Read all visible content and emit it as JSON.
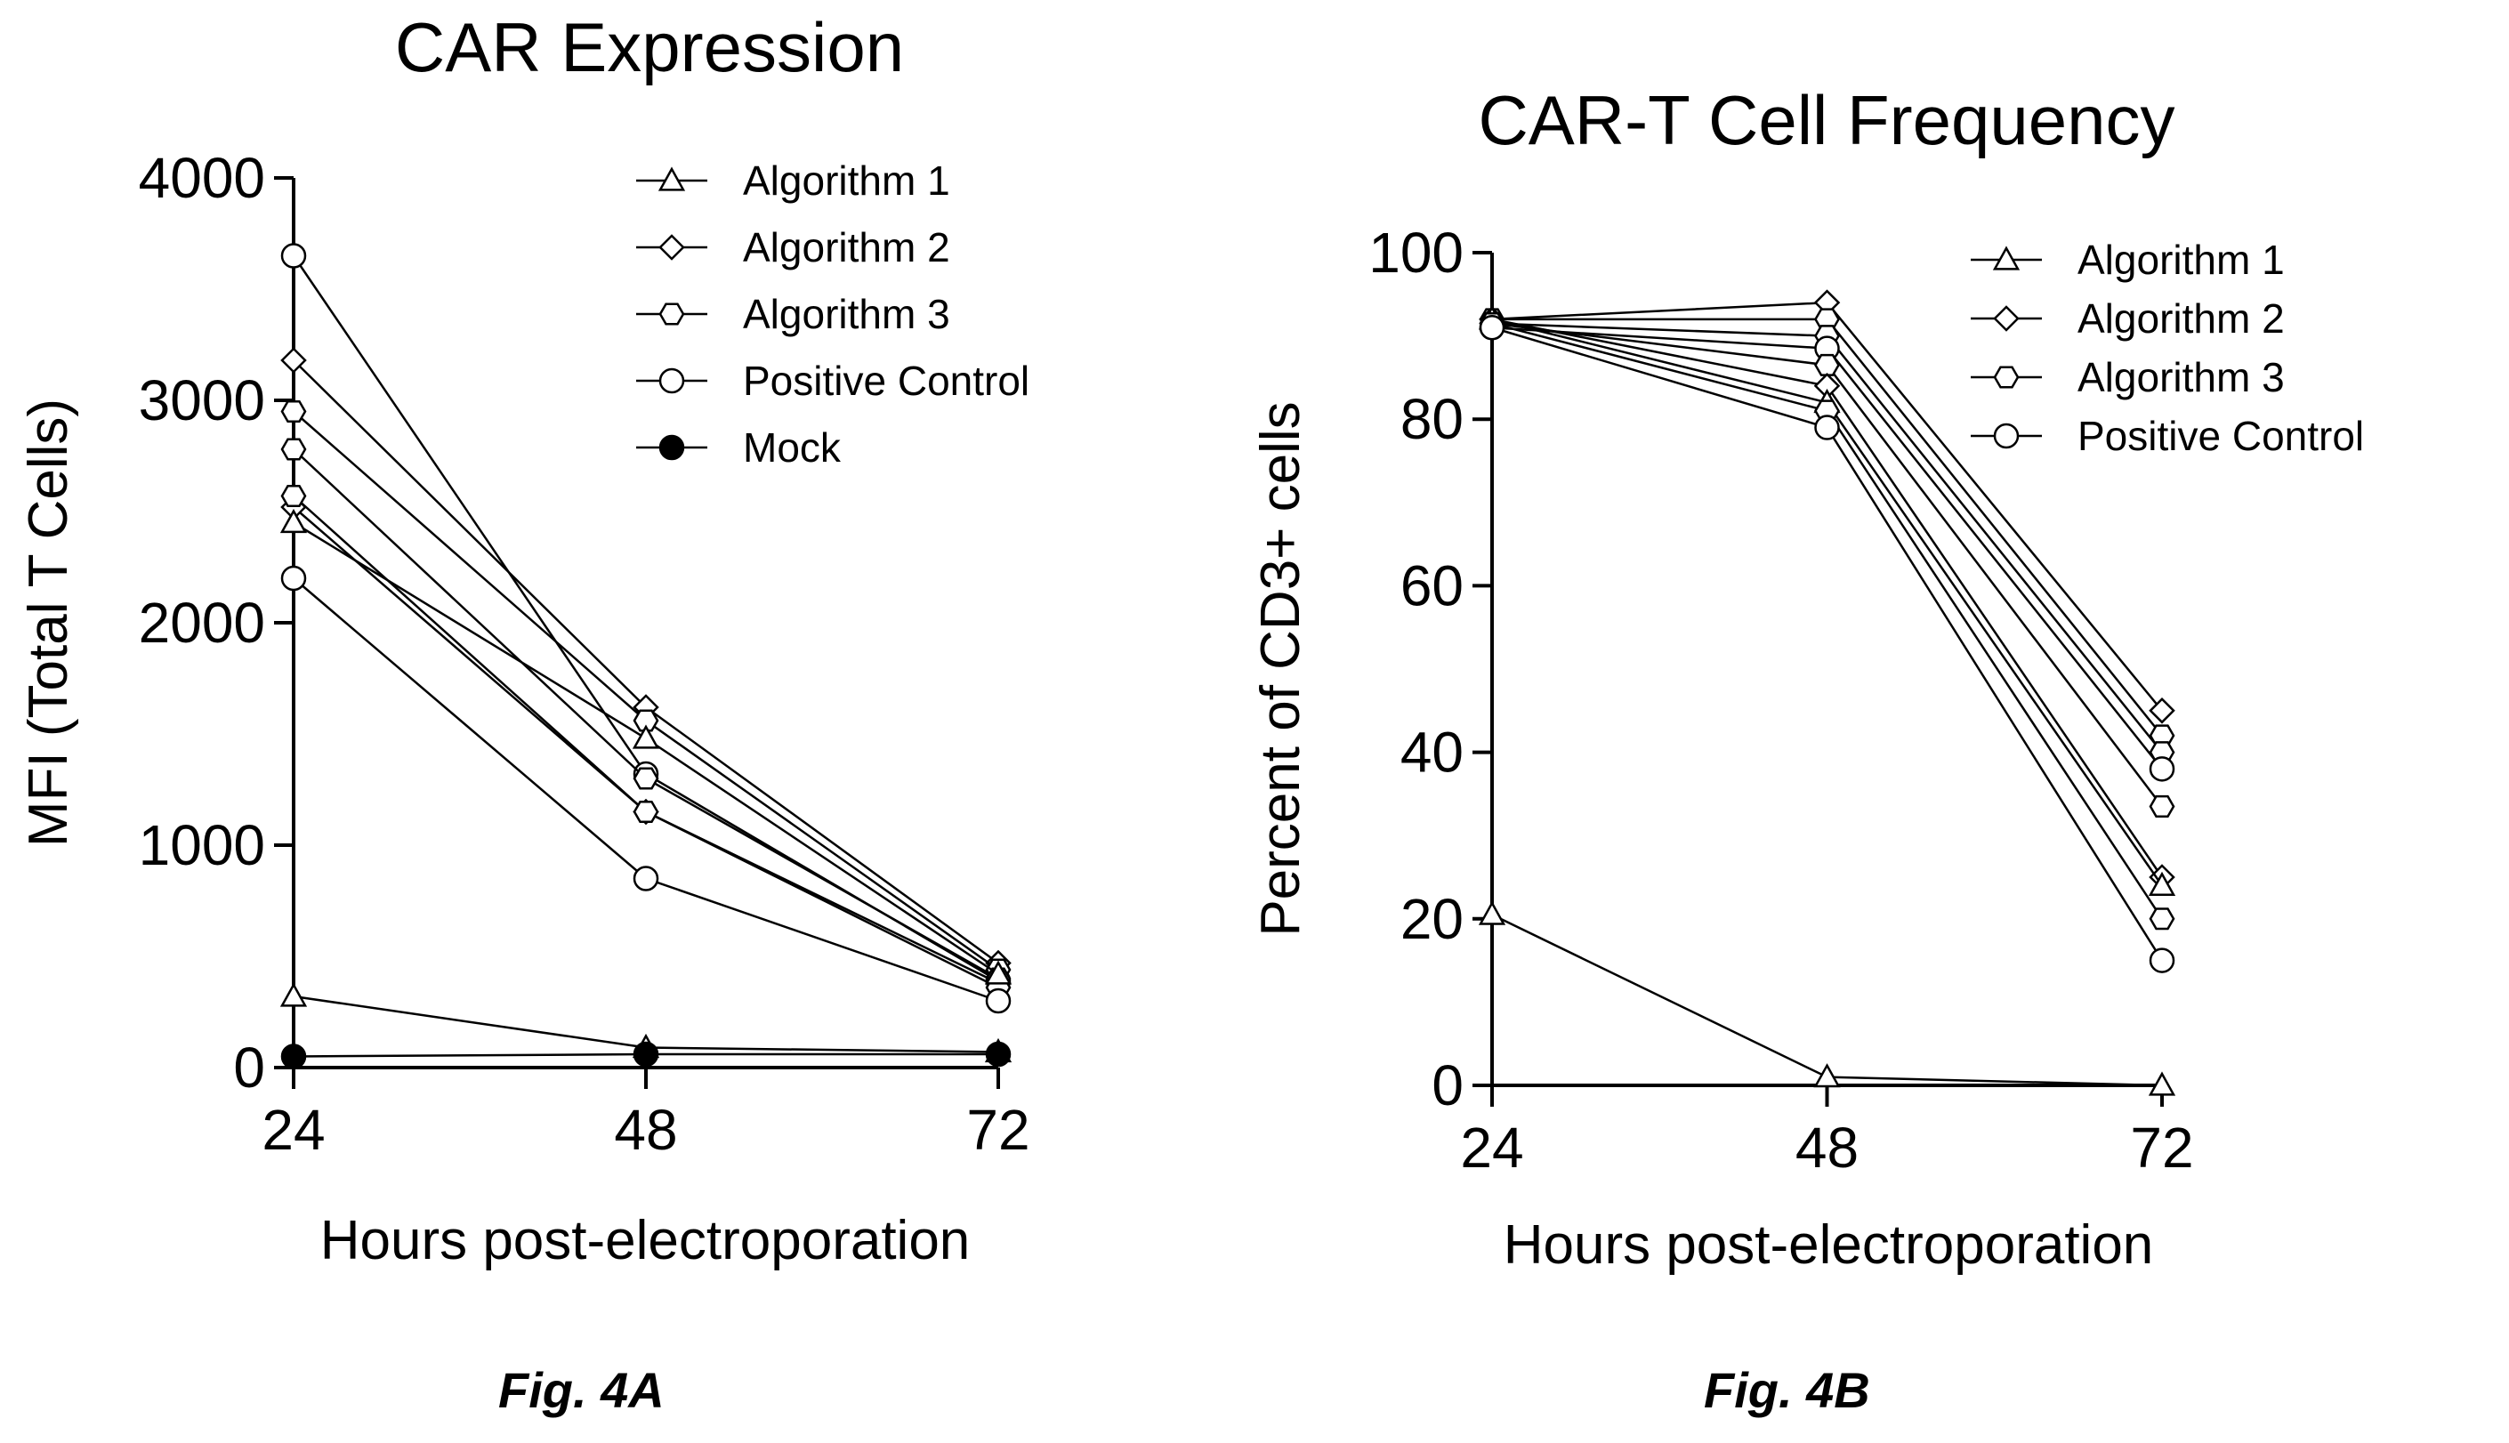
{
  "figures": [
    {
      "caption": "Fig. 4A"
    },
    {
      "caption": "Fig. 4B"
    }
  ],
  "chart_data": [
    {
      "type": "line",
      "title": "CAR Expression",
      "xlabel": "Hours post-electroporation",
      "ylabel": "MFI (Total T Cells)",
      "x": [
        24,
        48,
        72
      ],
      "xticks": [
        "24",
        "48",
        "72"
      ],
      "yticks": [
        "0",
        "1000",
        "2000",
        "3000",
        "4000"
      ],
      "xlim": [
        24,
        72
      ],
      "ylim": [
        0,
        4000
      ],
      "legend_position": "top-right",
      "legend": [
        {
          "label": "Algorithm 1",
          "marker": "triangle"
        },
        {
          "label": "Algorithm 2",
          "marker": "diamond"
        },
        {
          "label": "Algorithm 3",
          "marker": "hexagon"
        },
        {
          "label": "Positive Control",
          "marker": "circle"
        },
        {
          "label": "Mock",
          "marker": "filled-circle"
        }
      ],
      "series": [
        {
          "marker": "circle",
          "values": [
            3650,
            1320,
            390
          ]
        },
        {
          "marker": "diamond",
          "values": [
            3180,
            1620,
            470
          ]
        },
        {
          "marker": "hexagon",
          "values": [
            2950,
            1560,
            440
          ]
        },
        {
          "marker": "hexagon",
          "values": [
            2780,
            1300,
            400
          ]
        },
        {
          "marker": "diamond",
          "values": [
            2520,
            1150,
            380
          ]
        },
        {
          "marker": "hexagon",
          "values": [
            2570,
            1150,
            360
          ]
        },
        {
          "marker": "triangle",
          "values": [
            2450,
            1480,
            420
          ]
        },
        {
          "marker": "circle",
          "values": [
            2200,
            850,
            300
          ]
        },
        {
          "marker": "triangle",
          "values": [
            320,
            90,
            70
          ]
        },
        {
          "marker": "filled-circle",
          "values": [
            50,
            60,
            60
          ]
        }
      ]
    },
    {
      "type": "line",
      "title": "CAR-T Cell Frequency",
      "xlabel": "Hours post-electroporation",
      "ylabel": "Percent of CD3+ cells",
      "x": [
        24,
        48,
        72
      ],
      "xticks": [
        "24",
        "48",
        "72"
      ],
      "yticks": [
        "0",
        "20",
        "40",
        "60",
        "80",
        "100"
      ],
      "xlim": [
        24,
        72
      ],
      "ylim": [
        0,
        100
      ],
      "legend_position": "top-right",
      "legend": [
        {
          "label": "Algorithm 1",
          "marker": "triangle"
        },
        {
          "label": "Algorithm 2",
          "marker": "diamond"
        },
        {
          "label": "Algorithm 3",
          "marker": "hexagon"
        },
        {
          "label": "Positive Control",
          "marker": "circle"
        }
      ],
      "series": [
        {
          "marker": "diamond",
          "values": [
            92,
            94,
            45
          ]
        },
        {
          "marker": "hexagon",
          "values": [
            92,
            92,
            42
          ]
        },
        {
          "marker": "hexagon",
          "values": [
            91.5,
            90,
            40
          ]
        },
        {
          "marker": "circle",
          "values": [
            91,
            88.5,
            38
          ]
        },
        {
          "marker": "hexagon",
          "values": [
            91.5,
            86.5,
            33.5
          ]
        },
        {
          "marker": "diamond",
          "values": [
            92,
            84,
            25
          ]
        },
        {
          "marker": "triangle",
          "values": [
            92,
            82,
            24
          ]
        },
        {
          "marker": "hexagon",
          "values": [
            91.5,
            81,
            20
          ]
        },
        {
          "marker": "circle",
          "values": [
            91,
            79,
            15
          ]
        },
        {
          "marker": "triangle",
          "values": [
            20.5,
            1,
            0
          ]
        }
      ]
    }
  ]
}
